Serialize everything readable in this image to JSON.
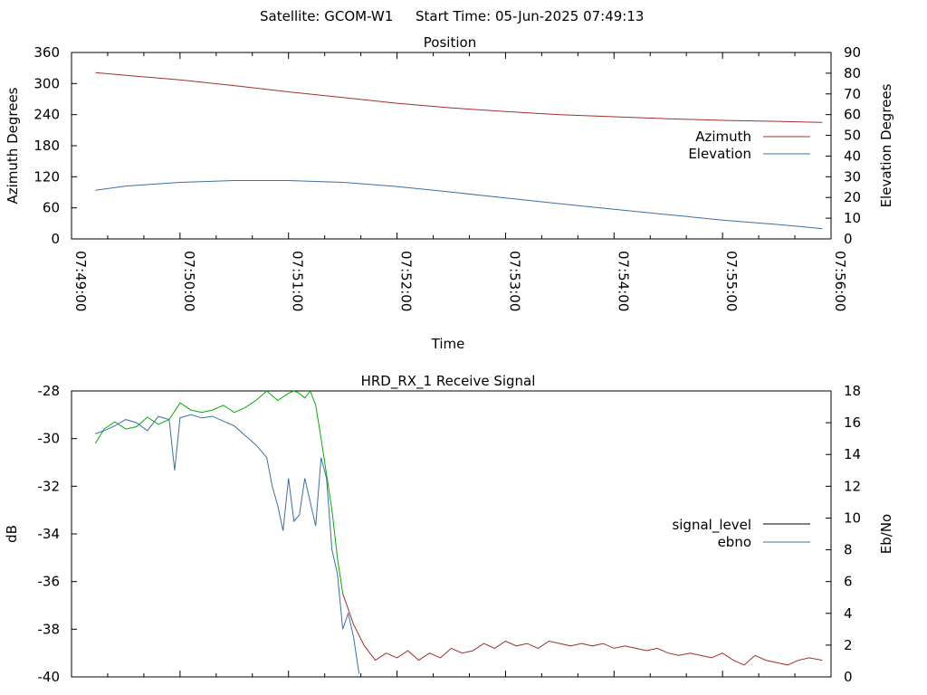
{
  "header": {
    "satellite": "Satellite: GCOM-W1",
    "start_time": "Start Time: 05-Jun-2025 07:49:13"
  },
  "chart_data": [
    {
      "type": "line",
      "title": "Position",
      "xlabel": "Time",
      "ylabel_left": "Azimuth Degrees",
      "ylabel_right": "Elevation Degrees",
      "x_ticks": [
        "07:49:00",
        "07:50:00",
        "07:51:00",
        "07:52:00",
        "07:53:00",
        "07:54:00",
        "07:55:00",
        "07:56:00"
      ],
      "xlim_minutes": [
        0,
        7
      ],
      "y_left_ticks": [
        "0",
        "60",
        "120",
        "180",
        "240",
        "300",
        "360"
      ],
      "y_left_lim": [
        0,
        360
      ],
      "y_right_ticks": [
        "0",
        "10",
        "20",
        "30",
        "40",
        "50",
        "60",
        "70",
        "80",
        "90"
      ],
      "y_right_lim": [
        0,
        90
      ],
      "grid": false,
      "legend_position": "right",
      "series": [
        {
          "name": "Azimuth",
          "axis": "left",
          "color": "#a0302c",
          "x_minutes": [
            0.22,
            0.5,
            1.0,
            1.5,
            2.0,
            2.5,
            3.0,
            3.5,
            4.0,
            4.5,
            5.0,
            5.5,
            6.0,
            6.5,
            6.92
          ],
          "values": [
            321,
            316,
            307,
            296,
            284,
            273,
            262,
            253,
            246,
            240,
            236,
            232,
            229,
            227,
            225
          ]
        },
        {
          "name": "Elevation",
          "axis": "right",
          "color": "#3c6fa6",
          "x_minutes": [
            0.22,
            0.5,
            1.0,
            1.5,
            2.0,
            2.5,
            3.0,
            3.5,
            4.0,
            4.5,
            5.0,
            5.5,
            6.0,
            6.5,
            6.92
          ],
          "values": [
            23.5,
            25.5,
            27.3,
            28.2,
            28.2,
            27.3,
            25.3,
            22.6,
            19.8,
            17.0,
            14.3,
            11.7,
            9.1,
            7.0,
            5.0
          ]
        }
      ]
    },
    {
      "type": "line",
      "title": "HRD_RX_1 Receive Signal",
      "xlabel": "",
      "ylabel_left": "dB",
      "ylabel_right": "Eb/No",
      "xlim_minutes": [
        0,
        7
      ],
      "y_left_ticks": [
        "-28",
        "-30",
        "-32",
        "-34",
        "-36",
        "-38",
        "-40"
      ],
      "y_left_lim": [
        -40,
        -28
      ],
      "y_right_ticks": [
        "0",
        "2",
        "4",
        "6",
        "8",
        "10",
        "12",
        "14",
        "16",
        "18"
      ],
      "y_right_lim": [
        0,
        18
      ],
      "grid": false,
      "legend_position": "right",
      "legend": [
        {
          "name": "signal_level",
          "color": "#000000"
        },
        {
          "name": "ebno",
          "color": "#3c6fa6"
        }
      ],
      "signal_level": {
        "axis": "left",
        "color_strong": "#00b000",
        "color_weak": "#a0302c",
        "x_minutes": [
          0.22,
          0.3,
          0.4,
          0.5,
          0.6,
          0.7,
          0.8,
          0.9,
          1.0,
          1.1,
          1.2,
          1.3,
          1.4,
          1.5,
          1.6,
          1.7,
          1.8,
          1.9,
          2.0,
          2.05,
          2.1,
          2.15,
          2.2,
          2.25,
          2.3,
          2.35,
          2.4,
          2.45,
          2.5,
          2.6,
          2.7,
          2.8,
          2.9,
          3.0,
          3.1,
          3.2,
          3.3,
          3.4,
          3.5,
          3.6,
          3.7,
          3.8,
          3.9,
          4.0,
          4.1,
          4.2,
          4.3,
          4.4,
          4.5,
          4.6,
          4.7,
          4.8,
          4.9,
          5.0,
          5.1,
          5.2,
          5.3,
          5.4,
          5.5,
          5.6,
          5.7,
          5.8,
          5.9,
          6.0,
          6.1,
          6.2,
          6.3,
          6.4,
          6.5,
          6.6,
          6.7,
          6.8,
          6.92
        ],
        "values": [
          -30.2,
          -29.6,
          -29.3,
          -29.6,
          -29.5,
          -29.1,
          -29.4,
          -29.2,
          -28.5,
          -28.8,
          -28.9,
          -28.8,
          -28.6,
          -28.9,
          -28.7,
          -28.4,
          -28.0,
          -28.4,
          -28.1,
          -28.0,
          -28.1,
          -28.3,
          -28.0,
          -28.6,
          -30.0,
          -31.5,
          -33.0,
          -35.0,
          -36.5,
          -37.8,
          -38.7,
          -39.3,
          -39.0,
          -39.2,
          -38.9,
          -39.3,
          -39.0,
          -39.2,
          -38.8,
          -39.0,
          -38.9,
          -38.6,
          -38.8,
          -38.5,
          -38.7,
          -38.6,
          -38.8,
          -38.5,
          -38.6,
          -38.7,
          -38.6,
          -38.7,
          -38.6,
          -38.8,
          -38.7,
          -38.8,
          -38.9,
          -38.8,
          -39.0,
          -39.1,
          -39.0,
          -39.1,
          -39.2,
          -39.0,
          -39.3,
          -39.5,
          -39.1,
          -39.3,
          -39.4,
          -39.5,
          -39.3,
          -39.2,
          -39.3
        ]
      },
      "ebno": {
        "axis": "right",
        "color": "#3c6fa6",
        "x_minutes": [
          0.22,
          0.3,
          0.4,
          0.5,
          0.6,
          0.7,
          0.8,
          0.9,
          0.95,
          1.0,
          1.1,
          1.2,
          1.3,
          1.4,
          1.5,
          1.6,
          1.7,
          1.8,
          1.85,
          1.9,
          1.95,
          2.0,
          2.05,
          2.1,
          2.15,
          2.2,
          2.25,
          2.3,
          2.35,
          2.4,
          2.45,
          2.5,
          2.55,
          2.6,
          2.65
        ],
        "values": [
          15.3,
          15.5,
          15.8,
          16.2,
          16.0,
          15.5,
          16.4,
          16.2,
          13.0,
          16.3,
          16.5,
          16.3,
          16.4,
          16.1,
          15.8,
          15.2,
          14.6,
          13.8,
          12.0,
          10.8,
          9.2,
          12.5,
          9.8,
          10.2,
          12.5,
          11.0,
          9.5,
          13.8,
          12.5,
          8.0,
          6.5,
          3.0,
          4.0,
          2.5,
          0.2
        ]
      }
    }
  ]
}
